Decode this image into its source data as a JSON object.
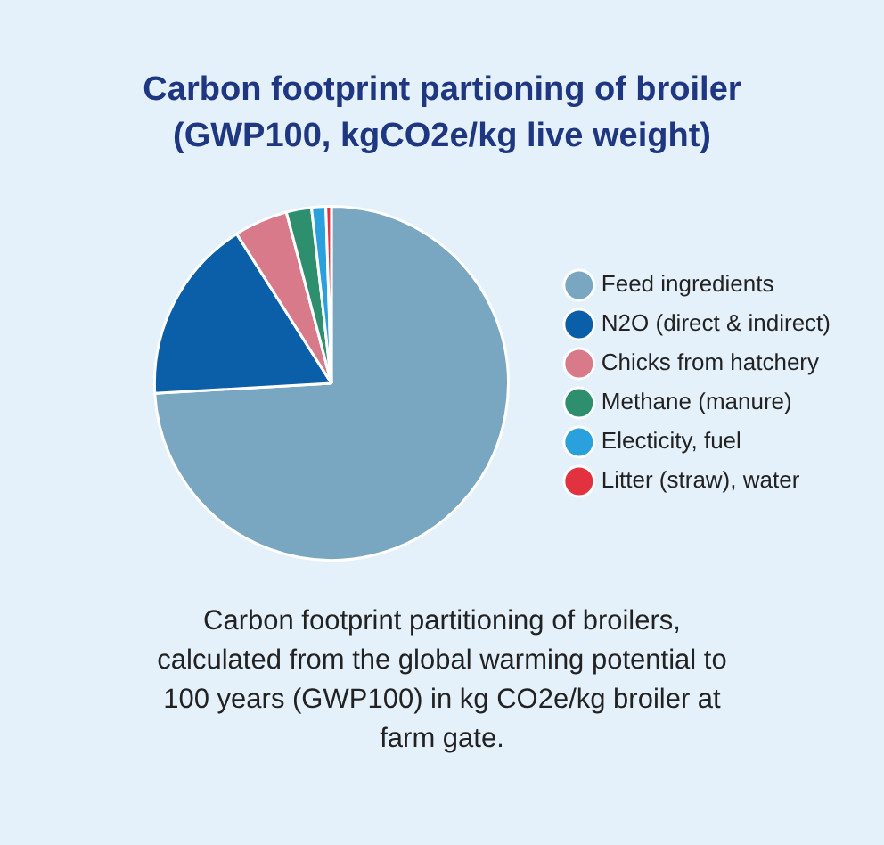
{
  "chart_data": {
    "type": "pie",
    "title": "Carbon footprint partioning of broiler (GWP100, kgCO2e/kg live weight)",
    "categories": [
      "Feed ingredients",
      "N2O (direct & indirect)",
      "Chicks from hatchery",
      "Methane (manure)",
      "Electicity, fuel",
      "Litter (straw), water"
    ],
    "values": [
      74.1,
      16.9,
      4.9,
      2.3,
      1.3,
      0.5
    ],
    "colors": [
      "#79a7c1",
      "#0b5fa9",
      "#d97a8b",
      "#2e8f6f",
      "#2aa0dc",
      "#e2323f"
    ],
    "legend": "right",
    "annotations": [
      "Carbon footprint partitioning of broilers, calculated from the global warming potential to 100 years (GWP100) in kg CO2e/kg broiler at farm gate."
    ]
  }
}
